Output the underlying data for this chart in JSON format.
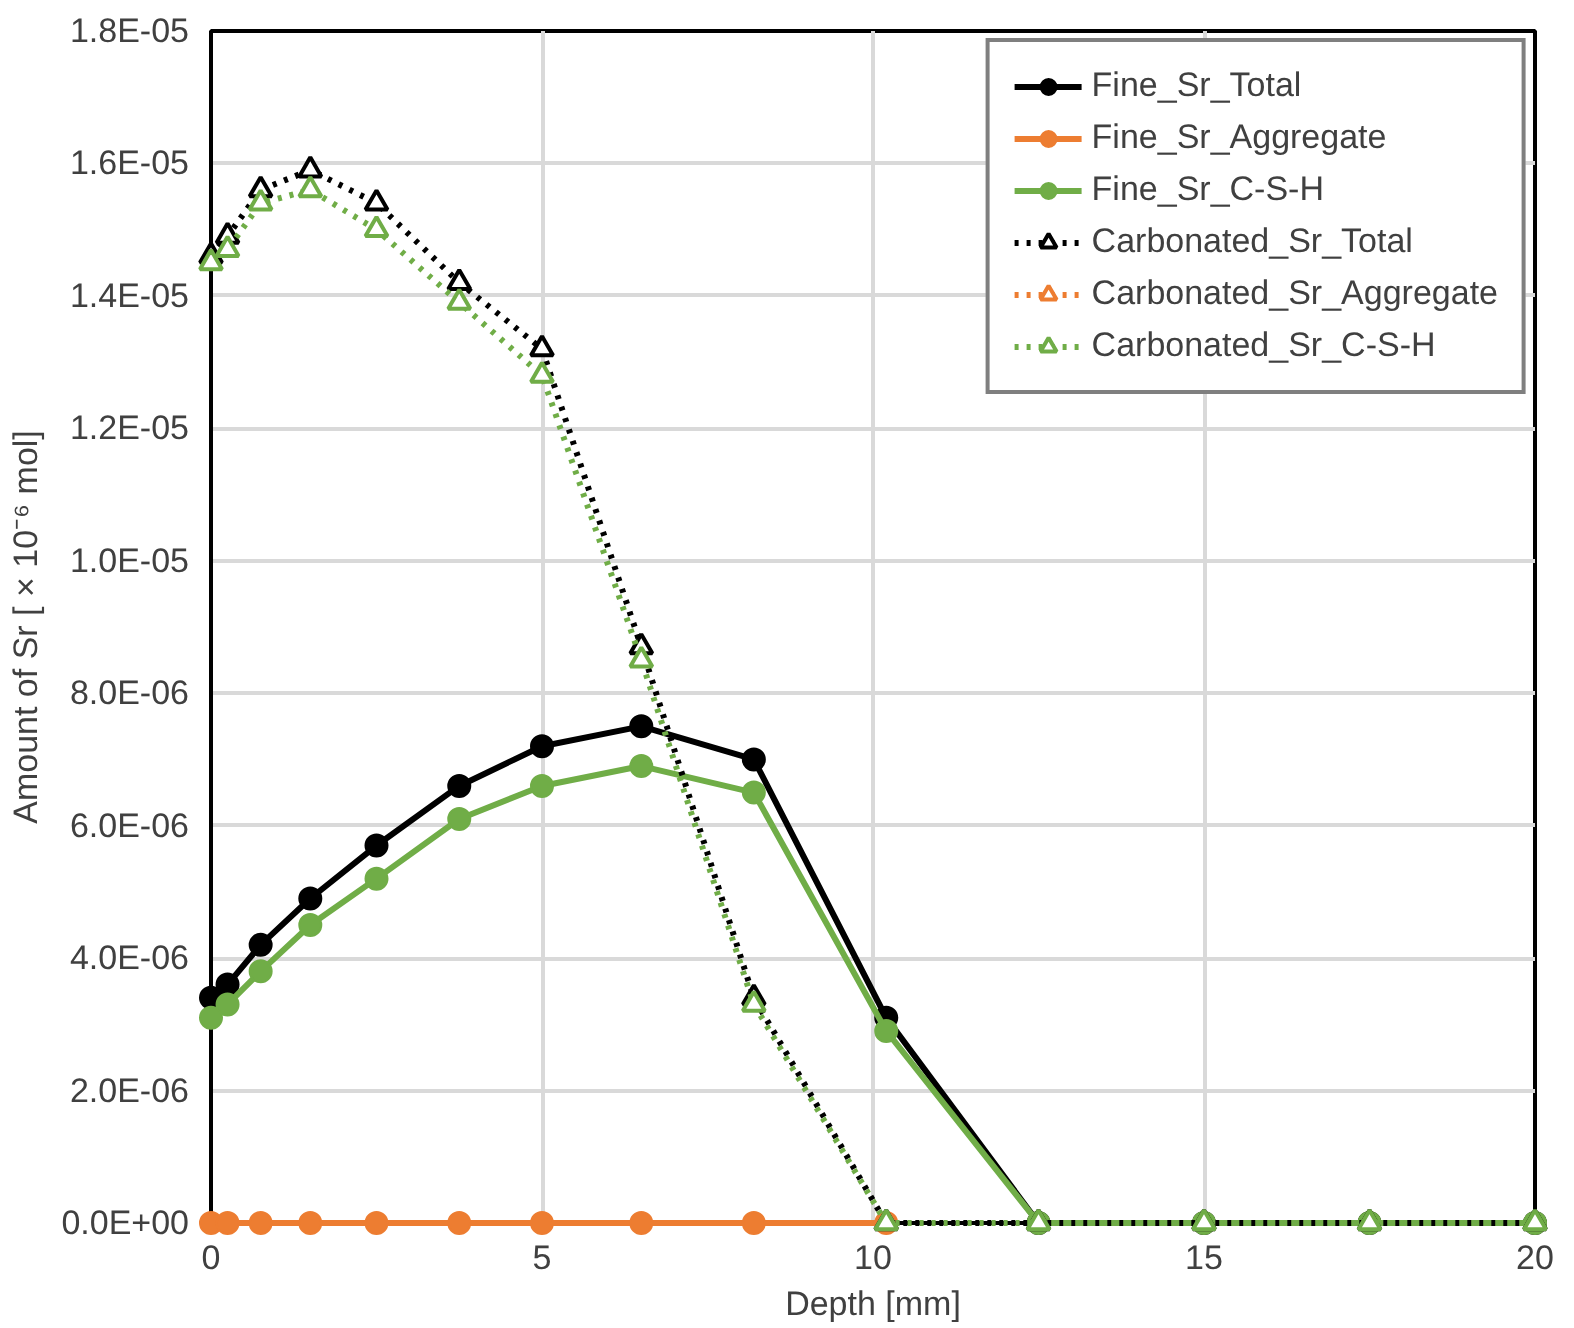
{
  "chart_data": {
    "type": "line",
    "xlabel": "Depth [mm]",
    "ylabel": "Amount of Sr [ × 10⁻⁶ mol]",
    "x": [
      0,
      0.25,
      0.75,
      1.5,
      2.5,
      3.75,
      5,
      6.5,
      8.2,
      10.2,
      12.5,
      15,
      17.5,
      20
    ],
    "xlim": [
      0,
      20
    ],
    "xticks": [
      0,
      5,
      10,
      15,
      20
    ],
    "ylim": [
      0,
      1.8e-05
    ],
    "yticks": [
      {
        "value": 0,
        "label": "0.0E+00"
      },
      {
        "value": 2e-06,
        "label": "2.0E-06"
      },
      {
        "value": 4e-06,
        "label": "4.0E-06"
      },
      {
        "value": 6e-06,
        "label": "6.0E-06"
      },
      {
        "value": 8e-06,
        "label": "8.0E-06"
      },
      {
        "value": 1e-05,
        "label": "1.0E-05"
      },
      {
        "value": 1.2e-05,
        "label": "1.2E-05"
      },
      {
        "value": 1.4e-05,
        "label": "1.4E-05"
      },
      {
        "value": 1.6e-05,
        "label": "1.6E-05"
      },
      {
        "value": 1.8e-05,
        "label": "1.8E-05"
      }
    ],
    "grid": true,
    "legend": "top right",
    "series": [
      {
        "name": "Fine_Sr_Total",
        "color": "#000000",
        "marker": "circle",
        "line_style": "solid",
        "values": [
          3.4e-06,
          3.6e-06,
          4.2e-06,
          4.9e-06,
          5.7e-06,
          6.6e-06,
          7.2e-06,
          7.5e-06,
          7e-06,
          3.1e-06,
          0,
          0,
          0,
          0
        ]
      },
      {
        "name": "Fine_Sr_Aggregate",
        "color": "#ed7d31",
        "marker": "circle",
        "line_style": "solid",
        "values": [
          0,
          0,
          0,
          0,
          0,
          0,
          0,
          0,
          0,
          0,
          null,
          null,
          null,
          null
        ]
      },
      {
        "name": "Fine_Sr_C-S-H",
        "color": "#70ad47",
        "marker": "circle",
        "line_style": "solid",
        "values": [
          3.1e-06,
          3.3e-06,
          3.8e-06,
          4.5e-06,
          5.2e-06,
          6.1e-06,
          6.6e-06,
          6.9e-06,
          6.5e-06,
          2.9e-06,
          0,
          0,
          0,
          0
        ]
      },
      {
        "name": "Carbonated_Sr_Total",
        "color": "#000000",
        "marker": "triangle",
        "line_style": "dotted",
        "values": [
          1.46e-05,
          1.49e-05,
          1.56e-05,
          1.59e-05,
          1.54e-05,
          1.42e-05,
          1.32e-05,
          8.7e-06,
          3.4e-06,
          0,
          0,
          0,
          0,
          0
        ]
      },
      {
        "name": "Carbonated_Sr_Aggregate",
        "color": "#ed7d31",
        "marker": "triangle",
        "line_style": "dotted",
        "values": [
          null,
          null,
          null,
          null,
          null,
          null,
          null,
          null,
          null,
          null,
          null,
          null,
          null,
          null
        ]
      },
      {
        "name": "Carbonated_Sr_C-S-H",
        "color": "#70ad47",
        "marker": "triangle",
        "line_style": "dotted",
        "values": [
          1.45e-05,
          1.47e-05,
          1.54e-05,
          1.56e-05,
          1.5e-05,
          1.39e-05,
          1.28e-05,
          8.5e-06,
          3.3e-06,
          0,
          0,
          0,
          0,
          0
        ]
      }
    ]
  }
}
